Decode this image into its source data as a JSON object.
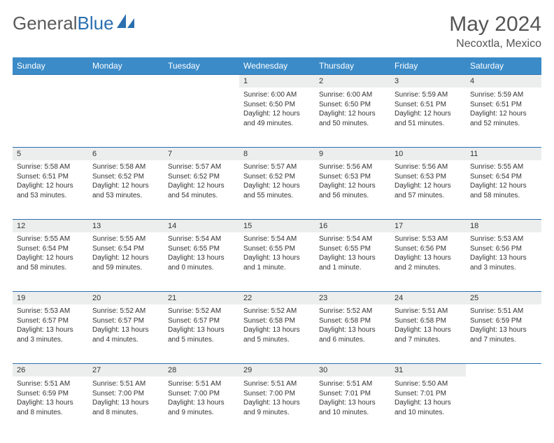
{
  "brand": {
    "part1": "General",
    "part2": "Blue"
  },
  "title": {
    "month": "May 2024",
    "location": "Necoxtla, Mexico"
  },
  "colors": {
    "header_bg": "#3b8bc8",
    "header_text": "#ffffff",
    "daynum_bg": "#eceded",
    "divider": "#2b6fb0",
    "text": "#333333",
    "logo_gray": "#5a5a5a",
    "logo_blue": "#2b6fb0"
  },
  "typography": {
    "title_fontsize": 30,
    "location_fontsize": 16,
    "header_fontsize": 12,
    "daynum_fontsize": 11,
    "body_fontsize": 10
  },
  "weekdays": [
    "Sunday",
    "Monday",
    "Tuesday",
    "Wednesday",
    "Thursday",
    "Friday",
    "Saturday"
  ],
  "weeks": [
    [
      null,
      null,
      null,
      {
        "n": "1",
        "sunrise": "Sunrise: 6:00 AM",
        "sunset": "Sunset: 6:50 PM",
        "day1": "Daylight: 12 hours",
        "day2": "and 49 minutes."
      },
      {
        "n": "2",
        "sunrise": "Sunrise: 6:00 AM",
        "sunset": "Sunset: 6:50 PM",
        "day1": "Daylight: 12 hours",
        "day2": "and 50 minutes."
      },
      {
        "n": "3",
        "sunrise": "Sunrise: 5:59 AM",
        "sunset": "Sunset: 6:51 PM",
        "day1": "Daylight: 12 hours",
        "day2": "and 51 minutes."
      },
      {
        "n": "4",
        "sunrise": "Sunrise: 5:59 AM",
        "sunset": "Sunset: 6:51 PM",
        "day1": "Daylight: 12 hours",
        "day2": "and 52 minutes."
      }
    ],
    [
      {
        "n": "5",
        "sunrise": "Sunrise: 5:58 AM",
        "sunset": "Sunset: 6:51 PM",
        "day1": "Daylight: 12 hours",
        "day2": "and 53 minutes."
      },
      {
        "n": "6",
        "sunrise": "Sunrise: 5:58 AM",
        "sunset": "Sunset: 6:52 PM",
        "day1": "Daylight: 12 hours",
        "day2": "and 53 minutes."
      },
      {
        "n": "7",
        "sunrise": "Sunrise: 5:57 AM",
        "sunset": "Sunset: 6:52 PM",
        "day1": "Daylight: 12 hours",
        "day2": "and 54 minutes."
      },
      {
        "n": "8",
        "sunrise": "Sunrise: 5:57 AM",
        "sunset": "Sunset: 6:52 PM",
        "day1": "Daylight: 12 hours",
        "day2": "and 55 minutes."
      },
      {
        "n": "9",
        "sunrise": "Sunrise: 5:56 AM",
        "sunset": "Sunset: 6:53 PM",
        "day1": "Daylight: 12 hours",
        "day2": "and 56 minutes."
      },
      {
        "n": "10",
        "sunrise": "Sunrise: 5:56 AM",
        "sunset": "Sunset: 6:53 PM",
        "day1": "Daylight: 12 hours",
        "day2": "and 57 minutes."
      },
      {
        "n": "11",
        "sunrise": "Sunrise: 5:55 AM",
        "sunset": "Sunset: 6:54 PM",
        "day1": "Daylight: 12 hours",
        "day2": "and 58 minutes."
      }
    ],
    [
      {
        "n": "12",
        "sunrise": "Sunrise: 5:55 AM",
        "sunset": "Sunset: 6:54 PM",
        "day1": "Daylight: 12 hours",
        "day2": "and 58 minutes."
      },
      {
        "n": "13",
        "sunrise": "Sunrise: 5:55 AM",
        "sunset": "Sunset: 6:54 PM",
        "day1": "Daylight: 12 hours",
        "day2": "and 59 minutes."
      },
      {
        "n": "14",
        "sunrise": "Sunrise: 5:54 AM",
        "sunset": "Sunset: 6:55 PM",
        "day1": "Daylight: 13 hours",
        "day2": "and 0 minutes."
      },
      {
        "n": "15",
        "sunrise": "Sunrise: 5:54 AM",
        "sunset": "Sunset: 6:55 PM",
        "day1": "Daylight: 13 hours",
        "day2": "and 1 minute."
      },
      {
        "n": "16",
        "sunrise": "Sunrise: 5:54 AM",
        "sunset": "Sunset: 6:55 PM",
        "day1": "Daylight: 13 hours",
        "day2": "and 1 minute."
      },
      {
        "n": "17",
        "sunrise": "Sunrise: 5:53 AM",
        "sunset": "Sunset: 6:56 PM",
        "day1": "Daylight: 13 hours",
        "day2": "and 2 minutes."
      },
      {
        "n": "18",
        "sunrise": "Sunrise: 5:53 AM",
        "sunset": "Sunset: 6:56 PM",
        "day1": "Daylight: 13 hours",
        "day2": "and 3 minutes."
      }
    ],
    [
      {
        "n": "19",
        "sunrise": "Sunrise: 5:53 AM",
        "sunset": "Sunset: 6:57 PM",
        "day1": "Daylight: 13 hours",
        "day2": "and 3 minutes."
      },
      {
        "n": "20",
        "sunrise": "Sunrise: 5:52 AM",
        "sunset": "Sunset: 6:57 PM",
        "day1": "Daylight: 13 hours",
        "day2": "and 4 minutes."
      },
      {
        "n": "21",
        "sunrise": "Sunrise: 5:52 AM",
        "sunset": "Sunset: 6:57 PM",
        "day1": "Daylight: 13 hours",
        "day2": "and 5 minutes."
      },
      {
        "n": "22",
        "sunrise": "Sunrise: 5:52 AM",
        "sunset": "Sunset: 6:58 PM",
        "day1": "Daylight: 13 hours",
        "day2": "and 5 minutes."
      },
      {
        "n": "23",
        "sunrise": "Sunrise: 5:52 AM",
        "sunset": "Sunset: 6:58 PM",
        "day1": "Daylight: 13 hours",
        "day2": "and 6 minutes."
      },
      {
        "n": "24",
        "sunrise": "Sunrise: 5:51 AM",
        "sunset": "Sunset: 6:58 PM",
        "day1": "Daylight: 13 hours",
        "day2": "and 7 minutes."
      },
      {
        "n": "25",
        "sunrise": "Sunrise: 5:51 AM",
        "sunset": "Sunset: 6:59 PM",
        "day1": "Daylight: 13 hours",
        "day2": "and 7 minutes."
      }
    ],
    [
      {
        "n": "26",
        "sunrise": "Sunrise: 5:51 AM",
        "sunset": "Sunset: 6:59 PM",
        "day1": "Daylight: 13 hours",
        "day2": "and 8 minutes."
      },
      {
        "n": "27",
        "sunrise": "Sunrise: 5:51 AM",
        "sunset": "Sunset: 7:00 PM",
        "day1": "Daylight: 13 hours",
        "day2": "and 8 minutes."
      },
      {
        "n": "28",
        "sunrise": "Sunrise: 5:51 AM",
        "sunset": "Sunset: 7:00 PM",
        "day1": "Daylight: 13 hours",
        "day2": "and 9 minutes."
      },
      {
        "n": "29",
        "sunrise": "Sunrise: 5:51 AM",
        "sunset": "Sunset: 7:00 PM",
        "day1": "Daylight: 13 hours",
        "day2": "and 9 minutes."
      },
      {
        "n": "30",
        "sunrise": "Sunrise: 5:51 AM",
        "sunset": "Sunset: 7:01 PM",
        "day1": "Daylight: 13 hours",
        "day2": "and 10 minutes."
      },
      {
        "n": "31",
        "sunrise": "Sunrise: 5:50 AM",
        "sunset": "Sunset: 7:01 PM",
        "day1": "Daylight: 13 hours",
        "day2": "and 10 minutes."
      },
      null
    ]
  ]
}
